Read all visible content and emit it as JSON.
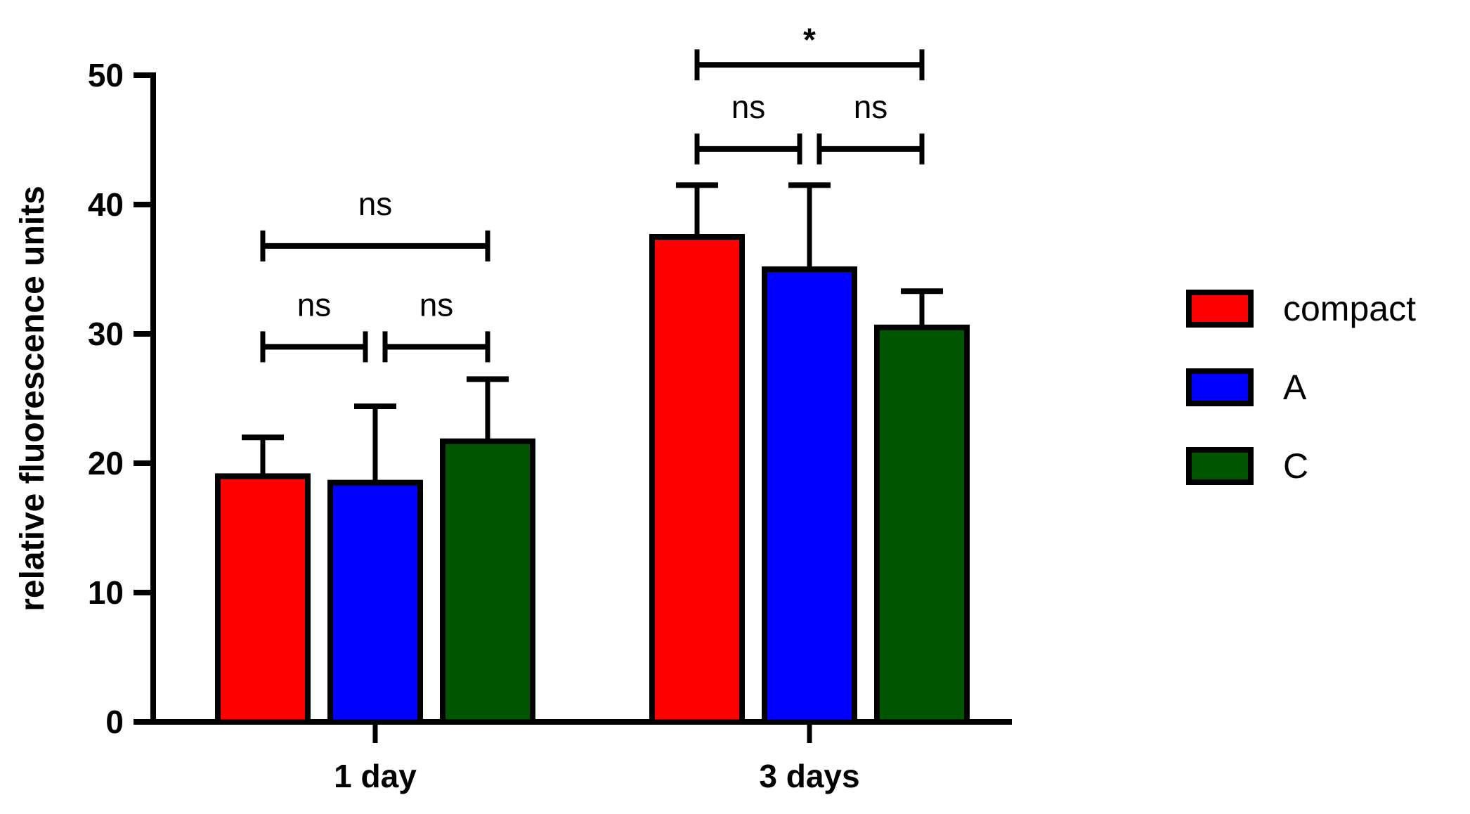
{
  "chart_data": {
    "type": "bar",
    "title": "",
    "xlabel": "",
    "ylabel": "relative fluorescence units",
    "ylim": [
      0,
      50
    ],
    "yticks": [
      0,
      10,
      20,
      30,
      40,
      50
    ],
    "grid": false,
    "legend_position": "right",
    "categories": [
      "1 day",
      "3 days"
    ],
    "series": [
      {
        "name": "compact",
        "color": "#ff0000",
        "values": [
          19.0,
          37.5
        ],
        "error_upper": [
          22.0,
          41.5
        ]
      },
      {
        "name": "A",
        "color": "#0000ff",
        "values": [
          18.5,
          35.0
        ],
        "error_upper": [
          24.4,
          41.5
        ]
      },
      {
        "name": "C",
        "color": "#005500",
        "values": [
          21.7,
          30.5
        ],
        "error_upper": [
          26.5,
          33.3
        ]
      }
    ],
    "annotations": [
      {
        "group": "1 day",
        "from": "compact",
        "to": "A",
        "label": "ns",
        "y": 29.0
      },
      {
        "group": "1 day",
        "from": "A",
        "to": "C",
        "label": "ns",
        "y": 29.0
      },
      {
        "group": "1 day",
        "from": "compact",
        "to": "C",
        "label": "ns",
        "y": 36.8
      },
      {
        "group": "3 days",
        "from": "compact",
        "to": "A",
        "label": "ns",
        "y": 44.3
      },
      {
        "group": "3 days",
        "from": "A",
        "to": "C",
        "label": "ns",
        "y": 44.3
      },
      {
        "group": "3 days",
        "from": "compact",
        "to": "C",
        "label": "*",
        "y": 50.8
      }
    ]
  }
}
